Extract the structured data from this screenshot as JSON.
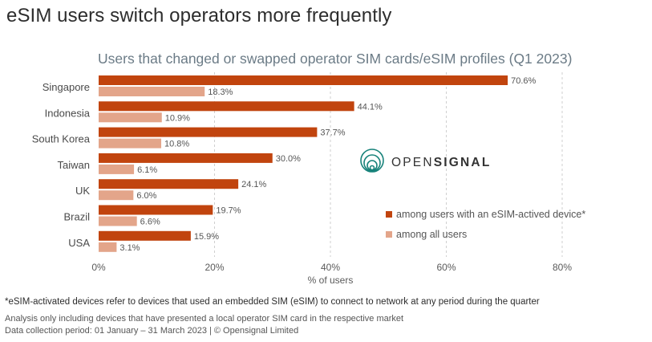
{
  "header": {
    "title": "eSIM users switch operators more frequently"
  },
  "chart_data": {
    "type": "bar",
    "orientation": "horizontal",
    "title": "Users that changed or swapped operator SIM cards/eSIM profiles (Q1 2023)",
    "xlabel": "% of users",
    "ylabel": "",
    "xlim": [
      0,
      80
    ],
    "xticks": [
      "0%",
      "20%",
      "40%",
      "60%",
      "80%"
    ],
    "grid": "vertical dashed",
    "legend_position": "bottom-right",
    "categories": [
      "Singapore",
      "Indonesia",
      "South Korea",
      "Taiwan",
      "UK",
      "Brazil",
      "USA"
    ],
    "series": [
      {
        "name": "among users with an eSIM-actived device*",
        "color": "#c1440e",
        "values": [
          70.6,
          44.1,
          37.7,
          30.0,
          24.1,
          19.7,
          15.9
        ],
        "labels": [
          "70.6%",
          "44.1%",
          "37.7%",
          "30.0%",
          "24.1%",
          "19.7%",
          "15.9%"
        ]
      },
      {
        "name": "among all users",
        "color": "#e3a58a",
        "values": [
          18.3,
          10.9,
          10.8,
          6.1,
          6.0,
          6.6,
          3.1
        ],
        "labels": [
          "18.3%",
          "10.9%",
          "10.8%",
          "6.1%",
          "6.0%",
          "6.6%",
          "3.1%"
        ]
      }
    ]
  },
  "logo": {
    "text_light": "OPEN",
    "text_bold": "SIGNAL",
    "color": "#17827a",
    "icon": "opensignal-signal-icon"
  },
  "footer": {
    "footnote": "*eSIM-activated devices refer to devices that used an embedded SIM (eSIM) to connect to network at any period during the quarter",
    "note1": "Analysis only including devices that have presented a local operator SIM card in the respective market",
    "note2": "Data collection period: 01 January – 31 March 2023  | © Opensignal Limited"
  }
}
